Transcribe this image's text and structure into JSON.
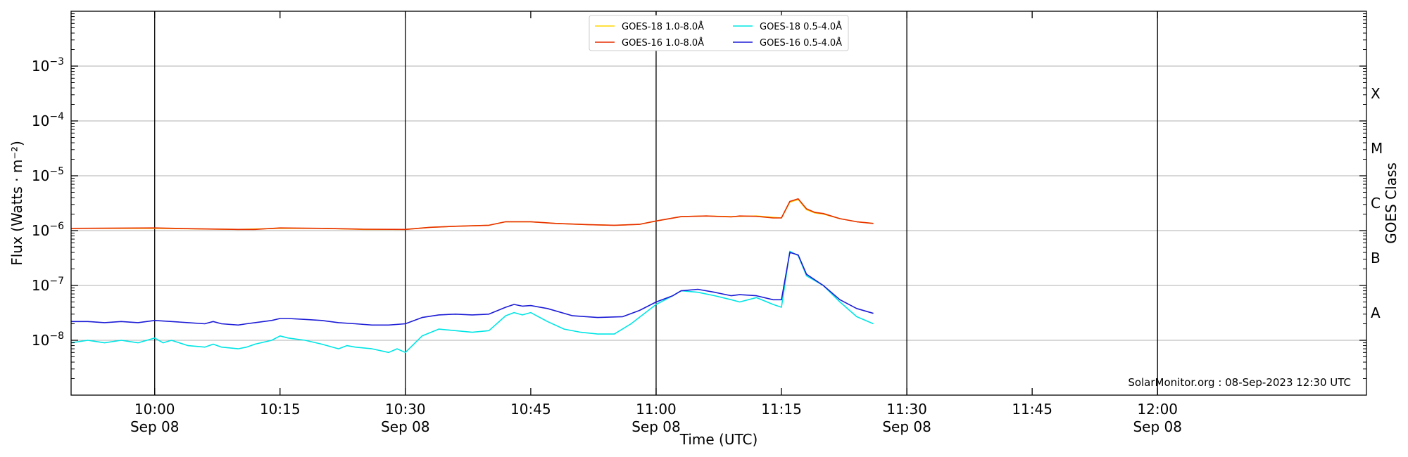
{
  "chart_data": {
    "type": "line",
    "title": "",
    "xlabel": "Time (UTC)",
    "ylabel": "Flux (Watts · m⁻²)",
    "right_label": "GOES Class",
    "credit": "SolarMonitor.org : 08-Sep-2023 12:30 UTC",
    "y_scale": "log",
    "ylim": [
      1e-09,
      0.01
    ],
    "xlim": [
      "09:50",
      "12:25"
    ],
    "y_ticks": [
      {
        "value": 1e-08,
        "label": "10",
        "exp": "−8"
      },
      {
        "value": 1e-07,
        "label": "10",
        "exp": "−7"
      },
      {
        "value": 1e-06,
        "label": "10",
        "exp": "−6"
      },
      {
        "value": 1e-05,
        "label": "10",
        "exp": "−5"
      },
      {
        "value": 0.0001,
        "label": "10",
        "exp": "−4"
      },
      {
        "value": 0.001,
        "label": "10",
        "exp": "−3"
      }
    ],
    "x_ticks": [
      {
        "time": "10:00",
        "label": "10:00",
        "sub": "Sep 08",
        "major": true
      },
      {
        "time": "10:15",
        "label": "10:15",
        "sub": "",
        "major": false
      },
      {
        "time": "10:30",
        "label": "10:30",
        "sub": "Sep 08",
        "major": true
      },
      {
        "time": "10:45",
        "label": "10:45",
        "sub": "",
        "major": false
      },
      {
        "time": "11:00",
        "label": "11:00",
        "sub": "Sep 08",
        "major": true
      },
      {
        "time": "11:15",
        "label": "11:15",
        "sub": "",
        "major": false
      },
      {
        "time": "11:30",
        "label": "11:30",
        "sub": "Sep 08",
        "major": true
      },
      {
        "time": "11:45",
        "label": "11:45",
        "sub": "",
        "major": false
      },
      {
        "time": "12:00",
        "label": "12:00",
        "sub": "Sep 08",
        "major": true
      }
    ],
    "goes_classes": [
      {
        "label": "A",
        "value": 3.16e-08
      },
      {
        "label": "B",
        "value": 3.16e-07
      },
      {
        "label": "C",
        "value": 3.16e-06
      },
      {
        "label": "M",
        "value": 3.16e-05
      },
      {
        "label": "X",
        "value": 0.000316
      }
    ],
    "grid": true,
    "legend_position": "top-center",
    "series": [
      {
        "name": "GOES-18 1.0-8.0Å",
        "color": "#ffd700",
        "x": [
          "09:50",
          "10:00",
          "10:10",
          "10:15",
          "10:20",
          "10:25",
          "10:30",
          "10:33",
          "10:36",
          "10:40",
          "10:42",
          "10:45",
          "10:48",
          "10:52",
          "10:55",
          "10:58",
          "11:00",
          "11:03",
          "11:06",
          "11:09",
          "11:12",
          "11:15",
          "11:16",
          "11:17",
          "11:18",
          "11:19",
          "11:20",
          "11:22",
          "11:24",
          "11:26"
        ],
        "values": [
          1.1e-06,
          1.1e-06,
          1.05e-06,
          1.1e-06,
          1.1e-06,
          1.05e-06,
          1.05e-06,
          1.15e-06,
          1.2e-06,
          1.25e-06,
          1.45e-06,
          1.45e-06,
          1.35e-06,
          1.28e-06,
          1.25e-06,
          1.3e-06,
          1.5e-06,
          1.8e-06,
          1.85e-06,
          1.8e-06,
          1.85e-06,
          1.7e-06,
          3.3e-06,
          3.7e-06,
          2.4e-06,
          2.1e-06,
          2e-06,
          1.65e-06,
          1.45e-06,
          1.35e-06
        ]
      },
      {
        "name": "GOES-16 1.0-8.0Å",
        "color": "#e62e00",
        "x": [
          "09:50",
          "10:00",
          "10:05",
          "10:10",
          "10:12",
          "10:15",
          "10:20",
          "10:25",
          "10:30",
          "10:33",
          "10:36",
          "10:40",
          "10:42",
          "10:45",
          "10:48",
          "10:52",
          "10:55",
          "10:58",
          "11:00",
          "11:03",
          "11:06",
          "11:09",
          "11:10",
          "11:12",
          "11:14",
          "11:15",
          "11:16",
          "11:17",
          "11:18",
          "11:19",
          "11:20",
          "11:22",
          "11:24",
          "11:26"
        ],
        "values": [
          1.1e-06,
          1.12e-06,
          1.08e-06,
          1.05e-06,
          1.05e-06,
          1.12e-06,
          1.1e-06,
          1.06e-06,
          1.05e-06,
          1.15e-06,
          1.2e-06,
          1.25e-06,
          1.45e-06,
          1.45e-06,
          1.35e-06,
          1.28e-06,
          1.25e-06,
          1.3e-06,
          1.5e-06,
          1.8e-06,
          1.85e-06,
          1.78e-06,
          1.85e-06,
          1.82e-06,
          1.7e-06,
          1.7e-06,
          3.4e-06,
          3.8e-06,
          2.5e-06,
          2.15e-06,
          2.05e-06,
          1.65e-06,
          1.45e-06,
          1.35e-06
        ]
      },
      {
        "name": "GOES-18 0.5-4.0Å",
        "color": "#00e5e5",
        "x": [
          "09:50",
          "09:52",
          "09:54",
          "09:56",
          "09:58",
          "10:00",
          "10:01",
          "10:02",
          "10:04",
          "10:06",
          "10:07",
          "10:08",
          "10:10",
          "10:11",
          "10:12",
          "10:14",
          "10:15",
          "10:16",
          "10:18",
          "10:20",
          "10:22",
          "10:23",
          "10:24",
          "10:26",
          "10:28",
          "10:29",
          "10:30",
          "10:32",
          "10:34",
          "10:36",
          "10:38",
          "10:40",
          "10:42",
          "10:43",
          "10:44",
          "10:45",
          "10:47",
          "10:49",
          "10:51",
          "10:53",
          "10:55",
          "10:57",
          "11:00",
          "11:02",
          "11:03",
          "11:05",
          "11:07",
          "11:09",
          "11:10",
          "11:12",
          "11:14",
          "11:15",
          "11:16",
          "11:17",
          "11:18",
          "11:20",
          "11:22",
          "11:24",
          "11:26"
        ],
        "values": [
          9e-09,
          1e-08,
          9e-09,
          1e-08,
          9e-09,
          1.1e-08,
          9e-09,
          1e-08,
          8e-09,
          7.5e-09,
          8.5e-09,
          7.5e-09,
          7e-09,
          7.5e-09,
          8.5e-09,
          1e-08,
          1.2e-08,
          1.1e-08,
          1e-08,
          8.5e-09,
          7e-09,
          8e-09,
          7.5e-09,
          7e-09,
          6e-09,
          7e-09,
          6e-09,
          1.2e-08,
          1.6e-08,
          1.5e-08,
          1.4e-08,
          1.5e-08,
          2.8e-08,
          3.2e-08,
          2.9e-08,
          3.2e-08,
          2.2e-08,
          1.6e-08,
          1.4e-08,
          1.3e-08,
          1.3e-08,
          2e-08,
          4.5e-08,
          6.5e-08,
          8e-08,
          7.5e-08,
          6.5e-08,
          5.5e-08,
          5e-08,
          6e-08,
          4.5e-08,
          4e-08,
          4.2e-07,
          3.5e-07,
          1.5e-07,
          1e-07,
          5e-08,
          2.7e-08,
          2e-08
        ]
      },
      {
        "name": "GOES-16 0.5-4.0Å",
        "color": "#1c1cd6",
        "x": [
          "09:50",
          "09:52",
          "09:54",
          "09:56",
          "09:58",
          "10:00",
          "10:02",
          "10:04",
          "10:06",
          "10:07",
          "10:08",
          "10:10",
          "10:11",
          "10:12",
          "10:14",
          "10:15",
          "10:16",
          "10:18",
          "10:20",
          "10:22",
          "10:24",
          "10:26",
          "10:28",
          "10:30",
          "10:32",
          "10:34",
          "10:36",
          "10:38",
          "10:40",
          "10:42",
          "10:43",
          "10:44",
          "10:45",
          "10:47",
          "10:50",
          "10:53",
          "10:56",
          "10:58",
          "11:00",
          "11:02",
          "11:03",
          "11:05",
          "11:07",
          "11:09",
          "11:10",
          "11:12",
          "11:14",
          "11:15",
          "11:16",
          "11:17",
          "11:18",
          "11:20",
          "11:22",
          "11:24",
          "11:26"
        ],
        "values": [
          2.2e-08,
          2.2e-08,
          2.1e-08,
          2.2e-08,
          2.1e-08,
          2.3e-08,
          2.2e-08,
          2.1e-08,
          2e-08,
          2.2e-08,
          2e-08,
          1.9e-08,
          2e-08,
          2.1e-08,
          2.3e-08,
          2.5e-08,
          2.5e-08,
          2.4e-08,
          2.3e-08,
          2.1e-08,
          2e-08,
          1.9e-08,
          1.9e-08,
          2e-08,
          2.6e-08,
          2.9e-08,
          3e-08,
          2.9e-08,
          3e-08,
          4e-08,
          4.5e-08,
          4.2e-08,
          4.3e-08,
          3.8e-08,
          2.8e-08,
          2.6e-08,
          2.7e-08,
          3.5e-08,
          5e-08,
          6.5e-08,
          8e-08,
          8.5e-08,
          7.5e-08,
          6.5e-08,
          6.8e-08,
          6.5e-08,
          5.5e-08,
          5.5e-08,
          4e-07,
          3.6e-07,
          1.6e-07,
          1e-07,
          5.5e-08,
          3.8e-08,
          3.1e-08
        ]
      }
    ]
  }
}
